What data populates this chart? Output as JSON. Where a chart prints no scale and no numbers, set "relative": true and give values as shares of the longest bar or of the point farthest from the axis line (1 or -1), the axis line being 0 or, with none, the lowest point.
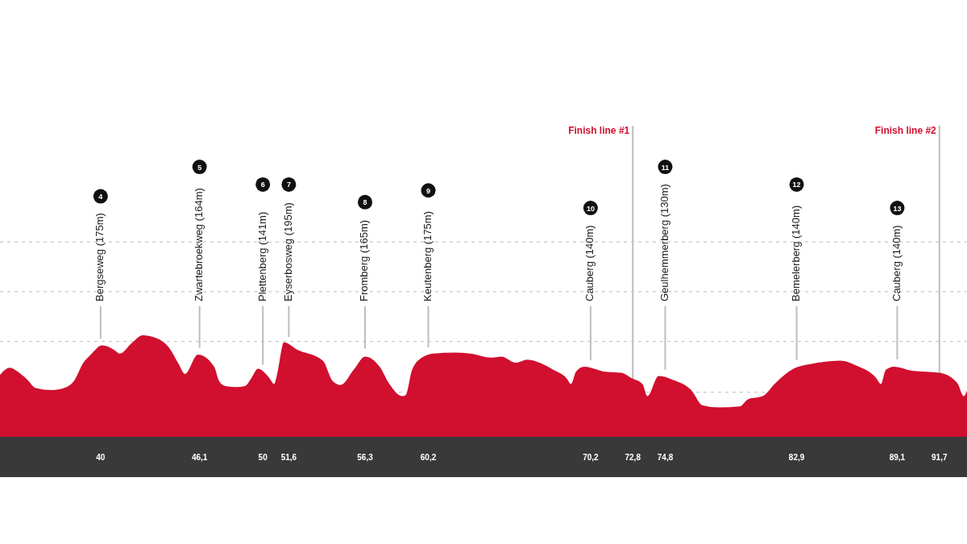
{
  "chart_data": {
    "type": "area",
    "relative": true,
    "color": "#d10f2e",
    "x": [
      33.8,
      34.4,
      34.9,
      35.5,
      36.0,
      37.0,
      37.9,
      38.4,
      38.9,
      39.4,
      40.1,
      40.8,
      41.2,
      41.9,
      42.6,
      43.3,
      44.3,
      44.8,
      45.2,
      46.0,
      47.0,
      47.3,
      47.7,
      48.4,
      48.9,
      49.3,
      49.7,
      50.4,
      50.7,
      50.9,
      51.3,
      52.1,
      53.7,
      54.3,
      54.8,
      55.6,
      56.3,
      57.2,
      57.8,
      58.6,
      58.8,
      59.2,
      59.8,
      60.5,
      61.8,
      62.8,
      64.1,
      64.7,
      65.6,
      66.3,
      67.2,
      67.9,
      68.7,
      69.0,
      69.3,
      69.8,
      71.1,
      72.1,
      72.7,
      73.4,
      73.7,
      74.4,
      75.3,
      76.4,
      77.1,
      78.1,
      79.4,
      79.9,
      80.8,
      81.6,
      82.7,
      83.9,
      85.6,
      86.6,
      87.8,
      88.1,
      88.4,
      88.9,
      90.0,
      91.7,
      92.8,
      93.2,
      93.4
    ],
    "values": [
      0.61,
      0.68,
      0.64,
      0.56,
      0.48,
      0.46,
      0.49,
      0.56,
      0.72,
      0.81,
      0.9,
      0.86,
      0.82,
      0.92,
      1.0,
      0.98,
      0.86,
      0.72,
      0.62,
      0.81,
      0.69,
      0.55,
      0.5,
      0.49,
      0.5,
      0.58,
      0.67,
      0.58,
      0.52,
      0.63,
      0.93,
      0.86,
      0.75,
      0.55,
      0.51,
      0.66,
      0.79,
      0.69,
      0.52,
      0.4,
      0.41,
      0.66,
      0.78,
      0.82,
      0.83,
      0.82,
      0.78,
      0.79,
      0.73,
      0.76,
      0.72,
      0.66,
      0.58,
      0.52,
      0.64,
      0.69,
      0.64,
      0.63,
      0.58,
      0.52,
      0.4,
      0.6,
      0.56,
      0.46,
      0.31,
      0.29,
      0.3,
      0.37,
      0.4,
      0.53,
      0.67,
      0.72,
      0.75,
      0.7,
      0.58,
      0.52,
      0.66,
      0.69,
      0.65,
      0.63,
      0.53,
      0.4,
      0.45
    ],
    "xlim": [
      33.8,
      93.4
    ],
    "xticks": [
      40,
      {
        "value": 46.1,
        "label": "46,1"
      },
      50,
      {
        "value": 51.6,
        "label": "51,6"
      },
      {
        "value": 56.3,
        "label": "56,3"
      },
      {
        "value": 60.2,
        "label": "60,2"
      },
      {
        "value": 70.2,
        "label": "70,2"
      },
      {
        "value": 72.8,
        "label": "72,8"
      },
      {
        "value": 74.8,
        "label": "74,8"
      },
      {
        "value": 82.9,
        "label": "82,9"
      },
      {
        "value": 89.1,
        "label": "89,1"
      },
      {
        "value": 91.7,
        "label": "91,7"
      }
    ],
    "ref_lines": [
      {
        "axis": "x",
        "value": 72.8,
        "label": "Finish line #1",
        "color": "#bdbdbd"
      },
      {
        "axis": "x",
        "value": 91.7,
        "label": "Finish line #2",
        "color": "#bdbdbd"
      },
      {
        "axis": "y",
        "value": 0.44,
        "color": "#c8c8c8",
        "line_style": "dashed"
      },
      {
        "axis": "y",
        "value": 0.94,
        "color": "#c8c8c8",
        "line_style": "dashed"
      },
      {
        "axis": "y",
        "value": 1.43,
        "color": "#c8c8c8",
        "line_style": "dashed"
      },
      {
        "axis": "y",
        "value": 1.92,
        "color": "#c8c8c8",
        "line_style": "dashed"
      }
    ],
    "annotations": [
      "Bergseweg (175m)",
      "4",
      "Zwartebroekweg (164m)",
      "5",
      "Plettenberg (141m)",
      "6",
      "Eyserbosweg (195m)",
      "7",
      "Fromberg (165m)",
      "8",
      "Keutenberg (175m)",
      "9",
      "Cauberg (140m)",
      "10",
      "Geulhemmerberg (130m)",
      "11",
      "Bemelerberg (140m)",
      "12",
      "Cauberg (140m)",
      "13"
    ]
  }
}
